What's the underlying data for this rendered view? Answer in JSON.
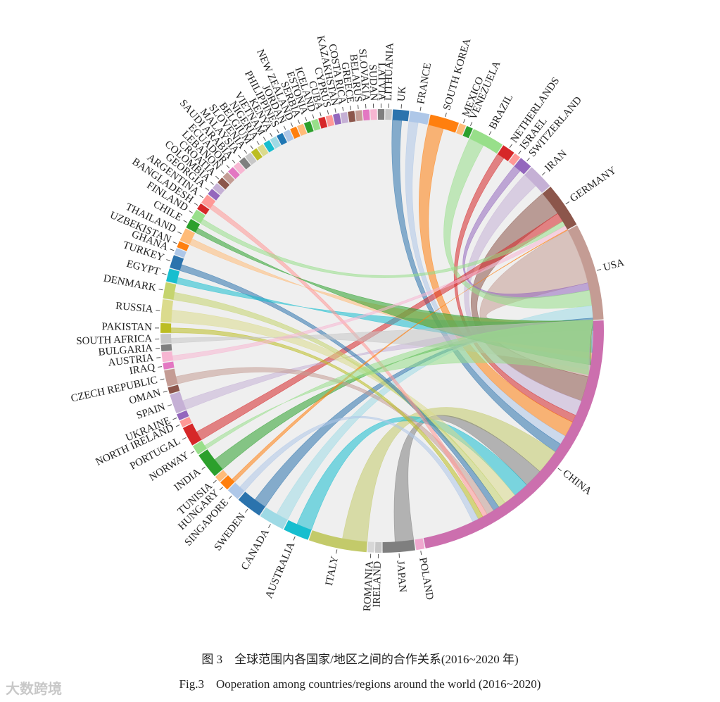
{
  "caption_cn": "图 3　全球范围内各国家/地区之间的合作关系(2016~2020 年)",
  "caption_en": "Fig.3　Ooperation among countries/regions around the world (2016~2020)",
  "watermark": "大数跨境",
  "chart_data": {
    "type": "chord",
    "countries": [
      {
        "name": "CHINA",
        "weight": 48,
        "color": "#cc6fae"
      },
      {
        "name": "POLAND",
        "weight": 1.3,
        "color": "#f0a8cf"
      },
      {
        "name": "JAPAN",
        "weight": 5,
        "color": "#7f7f7f"
      },
      {
        "name": "IRELAND",
        "weight": 1,
        "color": "#c7c7c7"
      },
      {
        "name": "ROMANIA",
        "weight": 1,
        "color": "#d7d7d7"
      },
      {
        "name": "ITALY",
        "weight": 9,
        "color": "#c3ca6a"
      },
      {
        "name": "AUSTRALIA",
        "weight": 4,
        "color": "#17becf"
      },
      {
        "name": "CANADA",
        "weight": 4,
        "color": "#9edae5"
      },
      {
        "name": "SWEDEN",
        "weight": 4,
        "color": "#2b73ad"
      },
      {
        "name": "SINGAPORE",
        "weight": 2,
        "color": "#aec7e8"
      },
      {
        "name": "HUNGARY",
        "weight": 1.5,
        "color": "#ff7f0e"
      },
      {
        "name": "TUNISIA",
        "weight": 1,
        "color": "#ffbb78"
      },
      {
        "name": "INDIA",
        "weight": 4,
        "color": "#2ca02c"
      },
      {
        "name": "NORWAY",
        "weight": 1.5,
        "color": "#98df8a"
      },
      {
        "name": "PORTUGAL",
        "weight": 3,
        "color": "#d62728"
      },
      {
        "name": "NORTH IRELAND",
        "weight": 1,
        "color": "#ff9896"
      },
      {
        "name": "UKRAINE",
        "weight": 1,
        "color": "#9467bd"
      },
      {
        "name": "SPAIN",
        "weight": 3,
        "color": "#c5b0d5"
      },
      {
        "name": "OMAN",
        "weight": 1,
        "color": "#8c564b"
      },
      {
        "name": "CZECH REPUBLIC",
        "weight": 2.5,
        "color": "#c49c94"
      },
      {
        "name": "IRAQ",
        "weight": 1,
        "color": "#e377c2"
      },
      {
        "name": "AUSTRIA",
        "weight": 1.5,
        "color": "#f7b6d2"
      },
      {
        "name": "BULGARIA",
        "weight": 1,
        "color": "#7f7f7f"
      },
      {
        "name": "SOUTH AFRICA",
        "weight": 1.5,
        "color": "#c7c7c7"
      },
      {
        "name": "PAKISTAN",
        "weight": 1.5,
        "color": "#bcbd22"
      },
      {
        "name": "RUSSIA",
        "weight": 3.5,
        "color": "#dbdb8d"
      },
      {
        "name": "DENMARK",
        "weight": 2.5,
        "color": "#c5d46e"
      },
      {
        "name": "EGYPT",
        "weight": 2,
        "color": "#17becf"
      },
      {
        "name": "TURKEY",
        "weight": 2,
        "color": "#2b73ad"
      },
      {
        "name": "GHANA",
        "weight": 1,
        "color": "#aec7e8"
      },
      {
        "name": "UZBEKISTAN",
        "weight": 1,
        "color": "#ff7f0e"
      },
      {
        "name": "THAILAND",
        "weight": 2,
        "color": "#ffbb78"
      },
      {
        "name": "CHILE",
        "weight": 1.5,
        "color": "#2ca02c"
      },
      {
        "name": "FINLAND",
        "weight": 1.5,
        "color": "#98df8a"
      },
      {
        "name": "BANGLADESH",
        "weight": 1,
        "color": "#d62728"
      },
      {
        "name": "ARGENTINA",
        "weight": 1.5,
        "color": "#ff9896"
      },
      {
        "name": "GEORGIA",
        "weight": 1,
        "color": "#9467bd"
      },
      {
        "name": "COLOMBIA",
        "weight": 1,
        "color": "#c5b0d5"
      },
      {
        "name": "CROATIA",
        "weight": 1,
        "color": "#8c564b"
      },
      {
        "name": "LEBANON",
        "weight": 1,
        "color": "#c49c94"
      },
      {
        "name": "ECUADOR",
        "weight": 1,
        "color": "#e377c2"
      },
      {
        "name": "SAUDI ARABIA",
        "weight": 1,
        "color": "#f7b6d2"
      },
      {
        "name": "MALAYSIA",
        "weight": 1,
        "color": "#7f7f7f"
      },
      {
        "name": "SLOVENIA",
        "weight": 1,
        "color": "#c7c7c7"
      },
      {
        "name": "BELGIUM",
        "weight": 1,
        "color": "#bcbd22"
      },
      {
        "name": "NIGERIA",
        "weight": 1,
        "color": "#dbdb8d"
      },
      {
        "name": "VIETNAM",
        "weight": 1,
        "color": "#17becf"
      },
      {
        "name": "KENYA",
        "weight": 1,
        "color": "#9edae5"
      },
      {
        "name": "PHILIPPINES",
        "weight": 1,
        "color": "#1f77b4"
      },
      {
        "name": "JORDAN",
        "weight": 1,
        "color": "#aec7e8"
      },
      {
        "name": "NEW ZEALAND",
        "weight": 1,
        "color": "#ff7f0e"
      },
      {
        "name": "SERBIA",
        "weight": 1,
        "color": "#ffbb78"
      },
      {
        "name": "ESTONIA",
        "weight": 1,
        "color": "#2ca02c"
      },
      {
        "name": "ICELAND",
        "weight": 1,
        "color": "#98df8a"
      },
      {
        "name": "CUBA",
        "weight": 1,
        "color": "#d62728"
      },
      {
        "name": "CYPRUS",
        "weight": 1,
        "color": "#ff9896"
      },
      {
        "name": "KAZAKHSTAN",
        "weight": 1,
        "color": "#9467bd"
      },
      {
        "name": "COSTA RICA",
        "weight": 1,
        "color": "#c5b0d5"
      },
      {
        "name": "GREECE",
        "weight": 1,
        "color": "#8c564b"
      },
      {
        "name": "BELARUS",
        "weight": 1,
        "color": "#c49c94"
      },
      {
        "name": "SLOVAKIA",
        "weight": 1,
        "color": "#e377c2"
      },
      {
        "name": "SUDAN",
        "weight": 1,
        "color": "#f7b6d2"
      },
      {
        "name": "LATVIA",
        "weight": 1,
        "color": "#7f7f7f"
      },
      {
        "name": "LITHUANIA",
        "weight": 1,
        "color": "#c7c7c7"
      },
      {
        "name": "UK",
        "weight": 2.5,
        "color": "#2b73ad"
      },
      {
        "name": "FRANCE",
        "weight": 3,
        "color": "#aec7e8"
      },
      {
        "name": "SOUTH KOREA",
        "weight": 4.5,
        "color": "#ff7f0e"
      },
      {
        "name": "MEXICO",
        "weight": 1,
        "color": "#ffbb78"
      },
      {
        "name": "VENEZUELA",
        "weight": 1,
        "color": "#2ca02c"
      },
      {
        "name": "BRAZIL",
        "weight": 5,
        "color": "#98df8a"
      },
      {
        "name": "NETHERLANDS",
        "weight": 2,
        "color": "#d62728"
      },
      {
        "name": "ISRAEL",
        "weight": 1,
        "color": "#ff9896"
      },
      {
        "name": "SWITZERLAND",
        "weight": 2,
        "color": "#9467bd"
      },
      {
        "name": "IRAN",
        "weight": 4,
        "color": "#c5b0d5"
      },
      {
        "name": "GERMANY",
        "weight": 7,
        "color": "#8c564b"
      },
      {
        "name": "USA",
        "weight": 15,
        "color": "#c49c94"
      }
    ],
    "links": [
      [
        "USA",
        "CHINA",
        9
      ],
      [
        "GERMANY",
        "CHINA",
        4
      ],
      [
        "IRAN",
        "CHINA",
        2.5
      ],
      [
        "SWITZERLAND",
        "USA",
        1.2
      ],
      [
        "NETHERLANDS",
        "CHINA",
        1.2
      ],
      [
        "BRAZIL",
        "USA",
        2.5
      ],
      [
        "SOUTH KOREA",
        "CHINA",
        2.5
      ],
      [
        "FRANCE",
        "CHINA",
        1.5
      ],
      [
        "UK",
        "CHINA",
        1.5
      ],
      [
        "ITALY",
        "CHINA",
        4
      ],
      [
        "JAPAN",
        "CHINA",
        3
      ],
      [
        "AUSTRALIA",
        "CHINA",
        2.5
      ],
      [
        "CANADA",
        "USA",
        2
      ],
      [
        "SWEDEN",
        "USA",
        2
      ],
      [
        "INDIA",
        "USA",
        2
      ],
      [
        "PORTUGAL",
        "GERMANY",
        1.5
      ],
      [
        "SPAIN",
        "USA",
        1.5
      ],
      [
        "RUSSIA",
        "CHINA",
        2
      ],
      [
        "DENMARK",
        "CHINA",
        1.2
      ],
      [
        "TURKEY",
        "CHINA",
        1
      ],
      [
        "EGYPT",
        "USA",
        1
      ],
      [
        "CZECH REPUBLIC",
        "CHINA",
        1.2
      ],
      [
        "THAILAND",
        "USA",
        1
      ],
      [
        "ARGENTINA",
        "CHINA",
        0.8
      ],
      [
        "CHILE",
        "USA",
        0.8
      ],
      [
        "FINLAND",
        "GERMANY",
        0.8
      ],
      [
        "PAKISTAN",
        "CHINA",
        0.8
      ],
      [
        "SOUTH AFRICA",
        "USA",
        0.8
      ],
      [
        "AUSTRIA",
        "GERMANY",
        0.8
      ],
      [
        "HUNGARY",
        "GERMANY",
        0.6
      ],
      [
        "SINGAPORE",
        "CHINA",
        1
      ],
      [
        "NORWAY",
        "USA",
        0.6
      ]
    ]
  }
}
